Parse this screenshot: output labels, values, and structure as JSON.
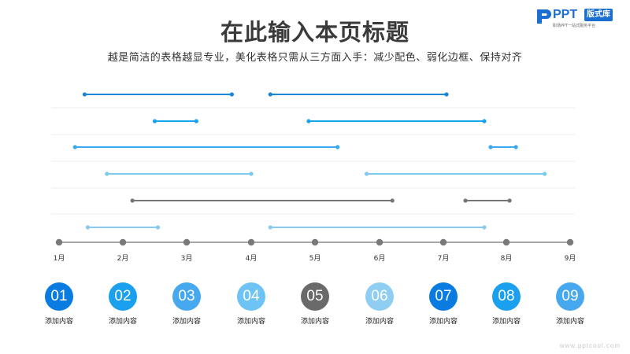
{
  "title": "在此输入本页标题",
  "subtitle": "越是简洁的表格越显专业，美化表格只需从三方面入手：减少配色、弱化边框、保持对齐",
  "logo": {
    "brand": "PPT",
    "badge": "版式库",
    "tagline": "职场PPT一站式服务平台"
  },
  "watermark": "www.pptcool.com",
  "months": [
    "1月",
    "2月",
    "3月",
    "4月",
    "5月",
    "6月",
    "7月",
    "8月",
    "9月"
  ],
  "rows": [
    {
      "color": "#1a86d9",
      "segments": [
        [
          1.4,
          3.7
        ],
        [
          4.3,
          7.05
        ]
      ]
    },
    {
      "color": "#1aa3ee",
      "segments": [
        [
          2.5,
          3.15
        ],
        [
          4.9,
          7.65
        ]
      ]
    },
    {
      "color": "#3aaaf0",
      "segments": [
        [
          1.25,
          5.35
        ],
        [
          7.75,
          8.15
        ]
      ]
    },
    {
      "color": "#7ccaf2",
      "segments": [
        [
          1.75,
          4.0
        ],
        [
          5.8,
          8.6
        ]
      ]
    },
    {
      "color": "#767676",
      "segments": [
        [
          2.15,
          6.2
        ],
        [
          7.35,
          8.05
        ]
      ]
    },
    {
      "color": "#8bc8ef",
      "segments": [
        [
          1.45,
          2.55
        ],
        [
          4.3,
          7.65
        ]
      ]
    }
  ],
  "items": [
    {
      "num": "01",
      "label": "添加内容",
      "color": "#0a7be0"
    },
    {
      "num": "02",
      "label": "添加内容",
      "color": "#1aa0ee"
    },
    {
      "num": "03",
      "label": "添加内容",
      "color": "#46a8ee"
    },
    {
      "num": "04",
      "label": "添加内容",
      "color": "#6dc3f3"
    },
    {
      "num": "05",
      "label": "添加内容",
      "color": "#6a6a6a"
    },
    {
      "num": "06",
      "label": "添加内容",
      "color": "#8fcdf3"
    },
    {
      "num": "07",
      "label": "添加内容",
      "color": "#0a7be0"
    },
    {
      "num": "08",
      "label": "添加内容",
      "color": "#1aa0ee"
    },
    {
      "num": "09",
      "label": "添加内容",
      "color": "#46a8ee"
    }
  ]
}
